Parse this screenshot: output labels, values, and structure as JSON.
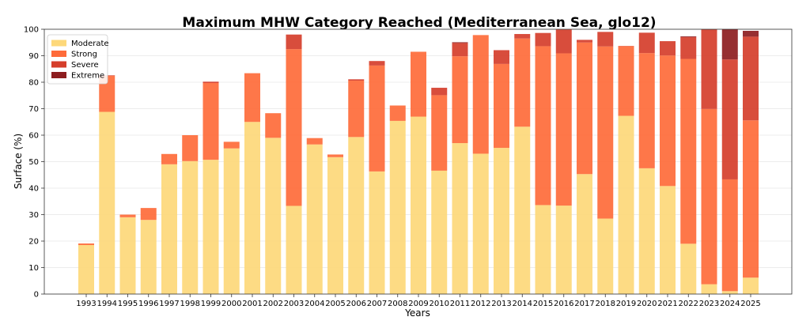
{
  "chart_data": {
    "type": "bar",
    "stacked": true,
    "title": "Maximum MHW Category Reached (Mediterranean Sea, glo12)",
    "xlabel": "Years",
    "ylabel": "Surface (%)",
    "ylim": [
      0,
      100
    ],
    "yticks": [
      0,
      10,
      20,
      30,
      40,
      50,
      60,
      70,
      80,
      90,
      100
    ],
    "grid": true,
    "legend_position": "top-left",
    "categories": [
      "1993",
      "1994",
      "1995",
      "1996",
      "1997",
      "1998",
      "1999",
      "2000",
      "2001",
      "2002",
      "2003",
      "2004",
      "2005",
      "2006",
      "2007",
      "2008",
      "2009",
      "2010",
      "2011",
      "2012",
      "2013",
      "2014",
      "2015",
      "2016",
      "2017",
      "2018",
      "2019",
      "2020",
      "2021",
      "2022",
      "2023",
      "2024",
      "2025"
    ],
    "series": [
      {
        "name": "Moderate",
        "color": "#fdd87a",
        "values": [
          18.5,
          68.8,
          29,
          28,
          49,
          50.2,
          50.7,
          55,
          65,
          59,
          33.3,
          56.5,
          51.7,
          59.3,
          46.3,
          65.4,
          67,
          46.6,
          57,
          53,
          55.2,
          63.2,
          33.6,
          33.4,
          45.3,
          28.5,
          67.3,
          47.5,
          40.8,
          19,
          3.7,
          1.1,
          6.2
        ]
      },
      {
        "name": "Strong",
        "color": "#fe6b3a",
        "values": [
          0.6,
          13.6,
          1,
          4.5,
          3.9,
          9.8,
          29,
          2.5,
          18.4,
          9.3,
          59.2,
          2.4,
          1,
          21.3,
          40,
          5.8,
          24.5,
          28.5,
          32.8,
          44.8,
          31.7,
          33.3,
          60,
          57.5,
          49.7,
          65,
          26.3,
          43.5,
          49.3,
          69.8,
          66.2,
          42.2,
          59.4
        ]
      },
      {
        "name": "Severe",
        "color": "#d53e2b",
        "values": [
          0,
          0.2,
          0,
          0,
          0,
          0,
          0.5,
          0,
          0,
          0,
          5.5,
          0,
          0,
          0.5,
          1.7,
          0,
          0,
          2.8,
          5,
          0,
          5.2,
          1.7,
          5,
          9,
          1,
          5.5,
          0.1,
          7.7,
          5.4,
          8.2,
          30,
          45.3,
          31.6
        ]
      },
      {
        "name": "Extreme",
        "color": "#8d1d1f",
        "values": [
          0,
          0,
          0,
          0,
          0,
          0,
          0,
          0,
          0,
          0,
          0,
          0,
          0,
          0,
          0,
          0,
          0,
          0,
          0.3,
          0,
          0,
          0,
          0,
          0,
          0,
          0,
          0,
          0,
          0,
          0.3,
          0.1,
          11.4,
          2.2
        ]
      }
    ]
  }
}
